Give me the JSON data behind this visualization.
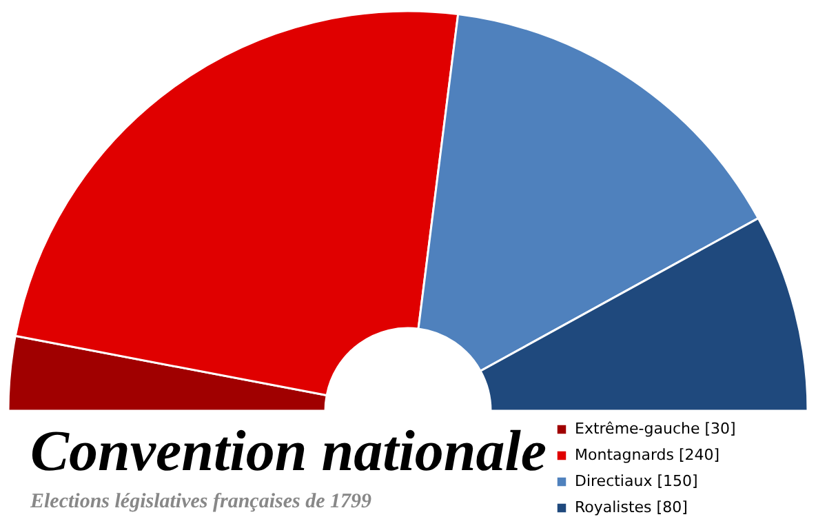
{
  "chart_data": {
    "type": "donut",
    "title": "Convention nationale",
    "subtitle": "Elections législatives françaises de 1799",
    "categories": [
      "Extrême-gauche [30]",
      "Montagnards [240]",
      "Directiaux [150]",
      "Royalistes [80]"
    ],
    "values": [
      30,
      240,
      150,
      80
    ],
    "colors": [
      "#a00000",
      "#e00000",
      "#4f81bd",
      "#1f497d"
    ],
    "legend": "bottom right"
  }
}
